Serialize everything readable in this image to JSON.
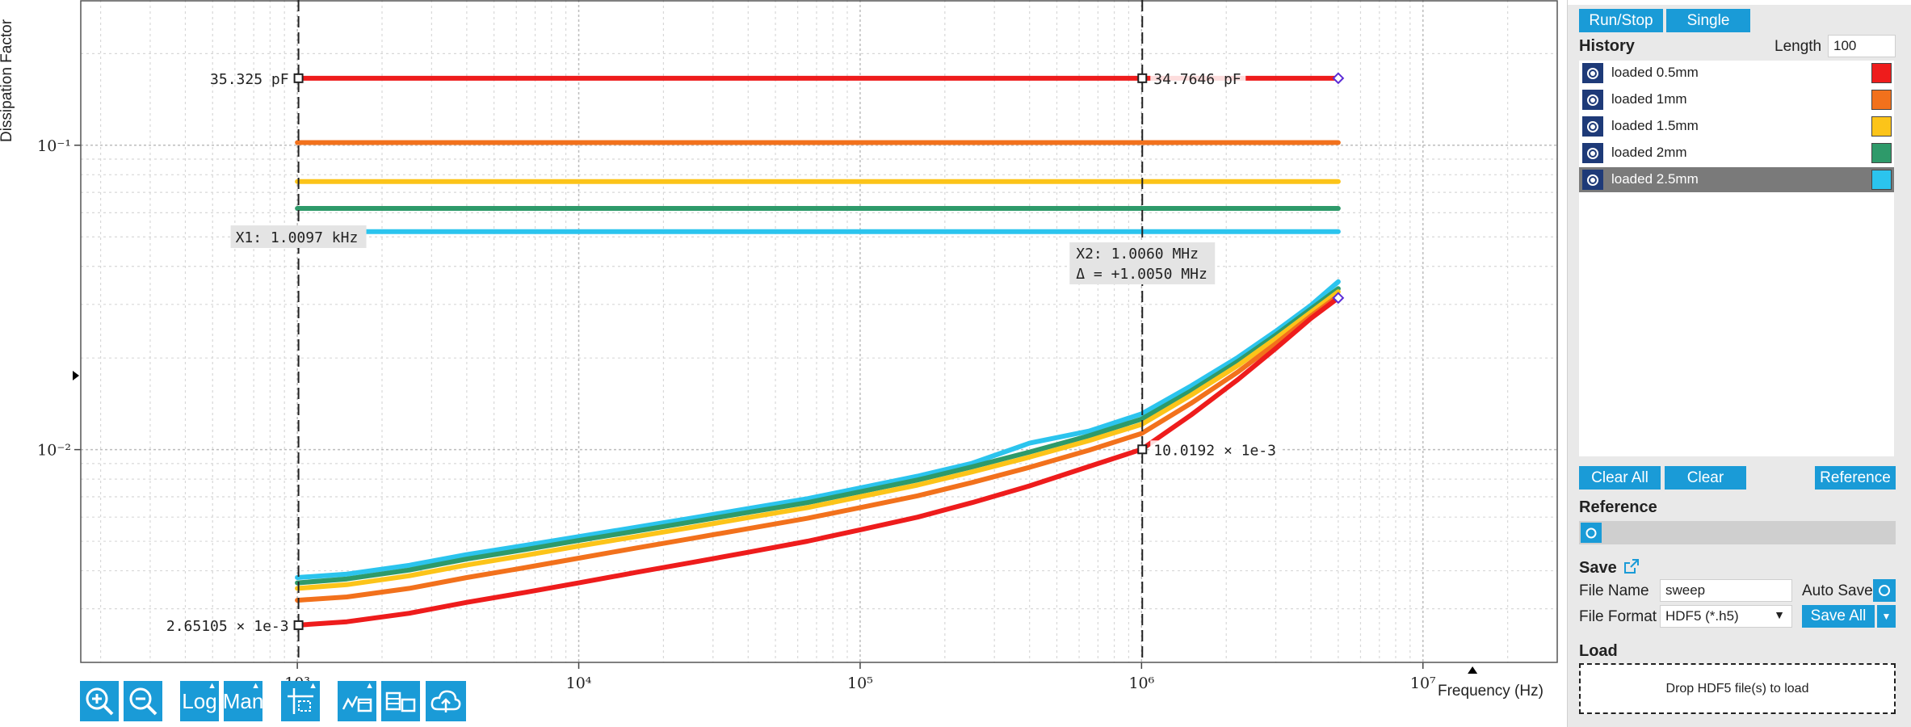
{
  "chart_data": {
    "type": "line",
    "xlabel": "Frequency (Hz)",
    "ylabel": "Dissipation Factor",
    "xscale": "log",
    "yscale": "log",
    "xlim": [
      170,
      30000000
    ],
    "ylim": [
      0.002,
      0.3
    ],
    "x_ticks": [
      {
        "value": 1000,
        "label": "10³"
      },
      {
        "value": 10000,
        "label": "10⁴"
      },
      {
        "value": 100000,
        "label": "10⁵"
      },
      {
        "value": 1000000,
        "label": "10⁶"
      },
      {
        "value": 10000000,
        "label": "10⁷"
      }
    ],
    "y_ticks": [
      {
        "value": 0.1,
        "label": "10⁻¹"
      },
      {
        "value": 0.01,
        "label": "10⁻²"
      }
    ],
    "x": [
      1000,
      1500,
      2500,
      4000,
      6500,
      10000,
      16000,
      25000,
      40000,
      65000,
      100000,
      160000,
      250000,
      400000,
      650000,
      1000000,
      1500000,
      2200000,
      3000000,
      4000000,
      5000000
    ],
    "series": [
      {
        "name": "loaded 0.5mm",
        "color": "#ee1c1c",
        "values": [
          0.00265,
          0.00272,
          0.0029,
          0.00315,
          0.0034,
          0.00365,
          0.00395,
          0.00425,
          0.0046,
          0.005,
          0.00545,
          0.006,
          0.0067,
          0.0076,
          0.0088,
          0.01002,
          0.013,
          0.017,
          0.0215,
          0.027,
          0.0315
        ]
      },
      {
        "name": "loaded 1mm",
        "color": "#f2711c",
        "values": [
          0.0032,
          0.00328,
          0.0035,
          0.0038,
          0.0041,
          0.0044,
          0.00475,
          0.0051,
          0.0055,
          0.00595,
          0.00645,
          0.00705,
          0.0078,
          0.00875,
          0.00995,
          0.0113,
          0.0142,
          0.018,
          0.0223,
          0.0275,
          0.032
        ]
      },
      {
        "name": "loaded 1.5mm",
        "color": "#fcc419",
        "values": [
          0.0035,
          0.0036,
          0.00385,
          0.00418,
          0.0045,
          0.00482,
          0.00518,
          0.00555,
          0.00598,
          0.00645,
          0.007,
          0.00765,
          0.00845,
          0.00945,
          0.0107,
          0.0121,
          0.0151,
          0.0189,
          0.0232,
          0.0283,
          0.033
        ]
      },
      {
        "name": "loaded 2mm",
        "color": "#2e9a6a",
        "values": [
          0.00365,
          0.00376,
          0.00402,
          0.00437,
          0.0047,
          0.00503,
          0.0054,
          0.00578,
          0.00622,
          0.0067,
          0.00727,
          0.00795,
          0.00878,
          0.00982,
          0.0111,
          0.0126,
          0.0156,
          0.0195,
          0.0238,
          0.029,
          0.0338
        ]
      },
      {
        "name": "loaded 2.5mm",
        "color": "#2bc4ee",
        "values": [
          0.0038,
          0.0039,
          0.00417,
          0.00452,
          0.00485,
          0.00518,
          0.00556,
          0.00595,
          0.0064,
          0.0069,
          0.00748,
          0.00818,
          0.00902,
          0.0105,
          0.0115,
          0.0131,
          0.0162,
          0.0201,
          0.0245,
          0.0298,
          0.0356
        ]
      }
    ],
    "flat_series": [
      {
        "name": "loaded 0.5mm",
        "color": "#ee1c1c",
        "value": 0.166
      },
      {
        "name": "loaded 1mm",
        "color": "#f2711c",
        "value": 0.102
      },
      {
        "name": "loaded 1.5mm",
        "color": "#fcc419",
        "value": 0.076
      },
      {
        "name": "loaded 2mm",
        "color": "#2e9a6a",
        "value": 0.062
      },
      {
        "name": "loaded 2.5mm",
        "color": "#2bc4ee",
        "value": 0.052
      }
    ],
    "cursors": {
      "x1": {
        "value": 1009.7,
        "label": "X1: 1.0097 kHz"
      },
      "x2": {
        "value": 1006000,
        "label": "X2: 1.0060 MHz",
        "delta": "Δ = +1.0050 MHz"
      }
    },
    "markers": [
      {
        "x": 1009.7,
        "y": 0.166,
        "label": "35.325 pF",
        "side": "left"
      },
      {
        "x": 1006000,
        "y": 0.166,
        "label": "34.7646 pF",
        "side": "right"
      },
      {
        "x": 1006000,
        "y": 0.01002,
        "label": "10.0192 × 1e-3",
        "side": "right"
      },
      {
        "x": 1009.7,
        "y": 0.00265,
        "label": "2.65105 × 1e-3",
        "side": "left"
      }
    ],
    "grid": true
  },
  "toolbar": {
    "log_label": "Log",
    "man_label": "Man",
    "icons": [
      "zoom-in-icon",
      "zoom-out-icon",
      "log-scale-button",
      "manual-scale-button",
      "cursor-icon",
      "export-plot-icon",
      "export-data-icon",
      "cloud-upload-icon"
    ]
  },
  "panel": {
    "run_stop": "Run/Stop",
    "single": "Single",
    "history_title": "History",
    "length_label": "Length",
    "length_value": "100",
    "history_items": [
      {
        "label": "loaded 0.5mm",
        "color": "#ee1c1c",
        "selected": false
      },
      {
        "label": "loaded 1mm",
        "color": "#f2711c",
        "selected": false
      },
      {
        "label": "loaded 1.5mm",
        "color": "#fcc419",
        "selected": false
      },
      {
        "label": "loaded 2mm",
        "color": "#2e9a6a",
        "selected": false
      },
      {
        "label": "loaded 2.5mm",
        "color": "#2bc4ee",
        "selected": true
      }
    ],
    "clear_all": "Clear All",
    "clear": "Clear",
    "reference_btn": "Reference",
    "reference_title": "Reference",
    "save_title": "Save",
    "file_name_label": "File Name",
    "file_name_value": "sweep",
    "auto_save_label": "Auto Save",
    "file_format_label": "File Format",
    "file_format_value": "HDF5 (*.h5)",
    "save_all": "Save All",
    "load_title": "Load",
    "drop_text": "Drop HDF5 file(s) to load"
  }
}
